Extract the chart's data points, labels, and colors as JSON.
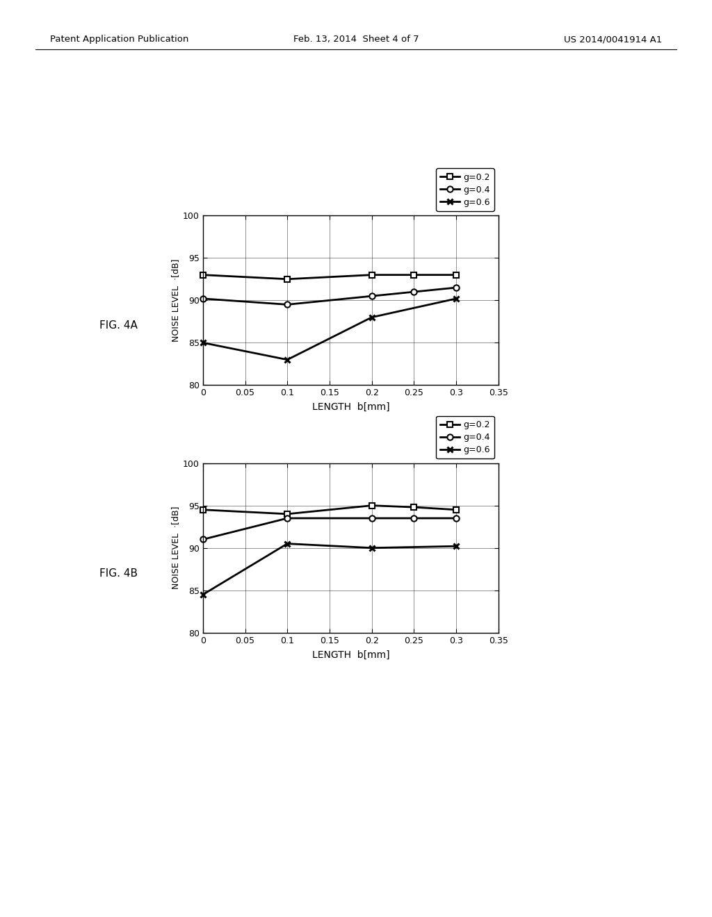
{
  "fig4a": {
    "series": [
      {
        "label": "g=0.2",
        "marker": "s",
        "x": [
          0,
          0.1,
          0.2,
          0.25,
          0.3
        ],
        "y": [
          93.0,
          92.5,
          93.0,
          93.0,
          93.0
        ]
      },
      {
        "label": "g=0.4",
        "marker": "o",
        "x": [
          0,
          0.1,
          0.2,
          0.25,
          0.3
        ],
        "y": [
          90.2,
          89.5,
          90.5,
          91.0,
          91.5
        ]
      },
      {
        "label": "g=0.6",
        "marker": "x",
        "x": [
          0,
          0.1,
          0.2,
          0.3
        ],
        "y": [
          85.0,
          83.0,
          88.0,
          90.2
        ]
      }
    ],
    "xlabel": "LENGTH  b[mm]",
    "ylabel": "NOISE LEVEL  ·[dB]",
    "xlim": [
      0,
      0.35
    ],
    "ylim": [
      80,
      100
    ],
    "yticks": [
      80,
      85,
      90,
      95,
      100
    ],
    "xticks": [
      0,
      0.05,
      0.1,
      0.15,
      0.2,
      0.25,
      0.3,
      0.35
    ],
    "fig_label": "FIG. 4A"
  },
  "fig4b": {
    "series": [
      {
        "label": "g=0.2",
        "marker": "s",
        "x": [
          0,
          0.1,
          0.2,
          0.25,
          0.3
        ],
        "y": [
          94.5,
          94.0,
          95.0,
          94.8,
          94.5
        ]
      },
      {
        "label": "g=0.4",
        "marker": "o",
        "x": [
          0,
          0.1,
          0.2,
          0.25,
          0.3
        ],
        "y": [
          91.0,
          93.5,
          93.5,
          93.5,
          93.5
        ]
      },
      {
        "label": "g=0.6",
        "marker": "x",
        "x": [
          0,
          0.1,
          0.2,
          0.3
        ],
        "y": [
          84.5,
          90.5,
          90.0,
          90.2
        ]
      }
    ],
    "xlabel": "LENGTH  b[mm]",
    "ylabel": "NOISE LEVEL  ·[dB]",
    "xlim": [
      0,
      0.35
    ],
    "ylim": [
      80,
      100
    ],
    "yticks": [
      80,
      85,
      90,
      95,
      100
    ],
    "xticks": [
      0,
      0.05,
      0.1,
      0.15,
      0.2,
      0.25,
      0.3,
      0.35
    ],
    "fig_label": "FIG. 4B"
  },
  "page_header": {
    "left": "Patent Application Publication",
    "center": "Feb. 13, 2014  Sheet 4 of 7",
    "right": "US 2014/0041914 A1"
  },
  "bg_color": "#ffffff",
  "line_color": "#000000",
  "linewidth": 2.0,
  "markersize": 6
}
